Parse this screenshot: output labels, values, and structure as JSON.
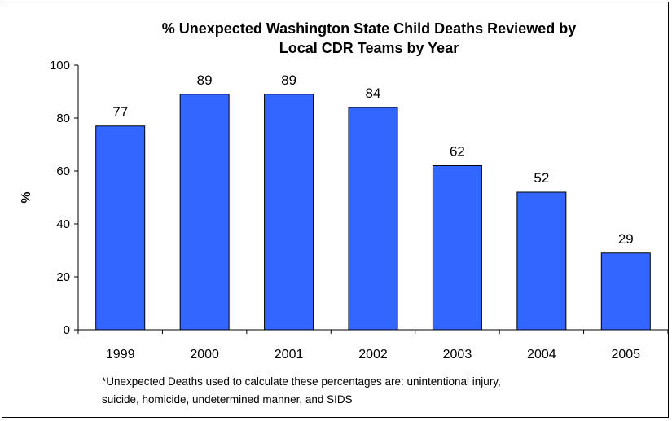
{
  "chart_data": {
    "type": "bar",
    "title_line1": "% Unexpected Washington State Child Deaths Reviewed by",
    "title_line2": "Local CDR Teams by Year",
    "xlabel": "",
    "ylabel": "%",
    "categories": [
      "1999",
      "2000",
      "2001",
      "2002",
      "2003",
      "2004",
      "2005"
    ],
    "values": [
      77,
      89,
      89,
      84,
      62,
      52,
      29
    ],
    "data_labels": [
      "77",
      "89",
      "89",
      "84",
      "62",
      "52",
      "29"
    ],
    "ylim": [
      0,
      100
    ],
    "yticks": [
      0,
      20,
      40,
      60,
      80,
      100
    ],
    "grid": false,
    "legend": "none",
    "bar_color": "#3366ff",
    "bar_edge_color": "#000000"
  },
  "footnote_line1": "*Unexpected Deaths used to calculate these percentages are: unintentional injury,",
  "footnote_line2": "suicide, homicide, undetermined manner, and SIDS"
}
